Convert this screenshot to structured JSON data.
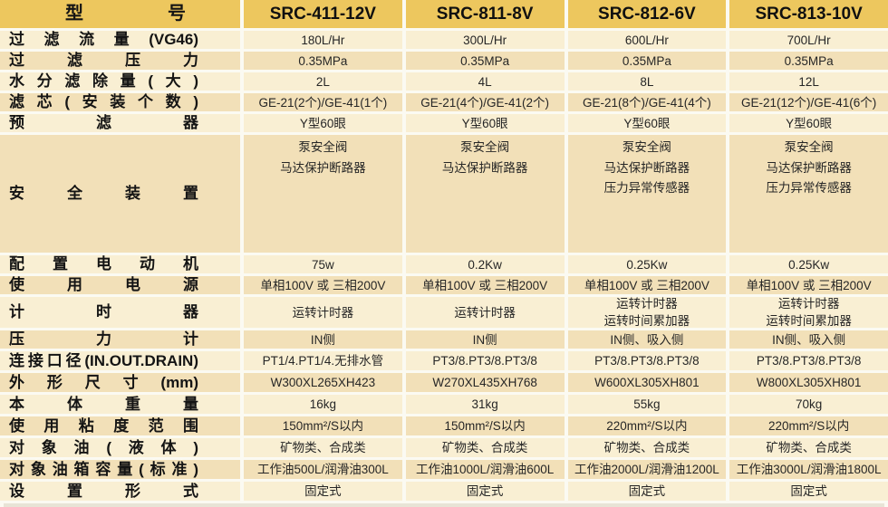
{
  "colors": {
    "header_gold": "#edc75e",
    "row_light": "#f9efd3",
    "row_dark": "#f2e0b8",
    "text": "#262626"
  },
  "table": {
    "header": {
      "model_label": "型号",
      "models": [
        "SRC-411-12V",
        "SRC-811-8V",
        "SRC-812-6V",
        "SRC-813-10V"
      ]
    },
    "rows": [
      {
        "label": "过滤流量(VG46)",
        "values": [
          "180L/Hr",
          "300L/Hr",
          "600L/Hr",
          "700L/Hr"
        ]
      },
      {
        "label": "过滤压力",
        "values": [
          "0.35MPa",
          "0.35MPa",
          "0.35MPa",
          "0.35MPa"
        ]
      },
      {
        "label": "水分滤除量(大)",
        "values": [
          "2L",
          "4L",
          "8L",
          "12L"
        ]
      },
      {
        "label": "滤芯(安装个数)",
        "values": [
          "GE-21(2个)/GE-41(1个)",
          "GE-21(4个)/GE-41(2个)",
          "GE-21(8个)/GE-41(4个)",
          "GE-21(12个)/GE-41(6个)"
        ]
      },
      {
        "label": "预滤器",
        "values": [
          "Y型60眼",
          "Y型60眼",
          "Y型60眼",
          "Y型60眼"
        ]
      },
      {
        "label": "安全装置",
        "values": [
          "泵安全阀\n马达保护断路器",
          "泵安全阀\n马达保护断路器",
          "泵安全阀\n马达保护断路器\n压力异常传感器",
          "泵安全阀\n马达保护断路器\n压力异常传感器"
        ]
      },
      {
        "label": "配置电动机",
        "values": [
          "75w",
          "0.2Kw",
          "0.25Kw",
          "0.25Kw"
        ]
      },
      {
        "label": "使用电源",
        "values": [
          "单相100V 或 三相200V",
          "单相100V 或 三相200V",
          "单相100V 或 三相200V",
          "单相100V 或 三相200V"
        ]
      },
      {
        "label": "计时器",
        "values": [
          "运转计时器",
          "运转计时器",
          "运转计时器\n运转时间累加器",
          "运转计时器\n运转时间累加器"
        ]
      },
      {
        "label": "压力计",
        "values": [
          "IN侧",
          "IN侧",
          "IN侧、吸入侧",
          "IN侧、吸入侧"
        ]
      },
      {
        "label": "连接口径(IN.OUT.DRAIN)",
        "values": [
          "PT1/4.PT1/4.无排水管",
          "PT3/8.PT3/8.PT3/8",
          "PT3/8.PT3/8.PT3/8",
          "PT3/8.PT3/8.PT3/8"
        ]
      },
      {
        "label": "外形尺寸(mm)",
        "values": [
          "W300XL265XH423",
          "W270XL435XH768",
          "W600XL305XH801",
          "W800XL305XH801"
        ]
      },
      {
        "label": "本体重量",
        "values": [
          "16kg",
          "31kg",
          "55kg",
          "70kg"
        ]
      },
      {
        "label": "使用粘度范围",
        "values": [
          "150mm²/S以内",
          "150mm²/S以内",
          "220mm²/S以内",
          "220mm²/S以内"
        ]
      },
      {
        "label": "对象油(液体)",
        "values": [
          "矿物类、合成类",
          "矿物类、合成类",
          "矿物类、合成类",
          "矿物类、合成类"
        ]
      },
      {
        "label": "对象油箱容量(标准)",
        "values": [
          "工作油500L/润滑油300L",
          "工作油1000L/润滑油600L",
          "工作油2000L/润滑油1200L",
          "工作油3000L/润滑油1800L"
        ]
      },
      {
        "label": "设置形式",
        "values": [
          "固定式",
          "固定式",
          "固定式",
          "固定式"
        ]
      }
    ]
  }
}
